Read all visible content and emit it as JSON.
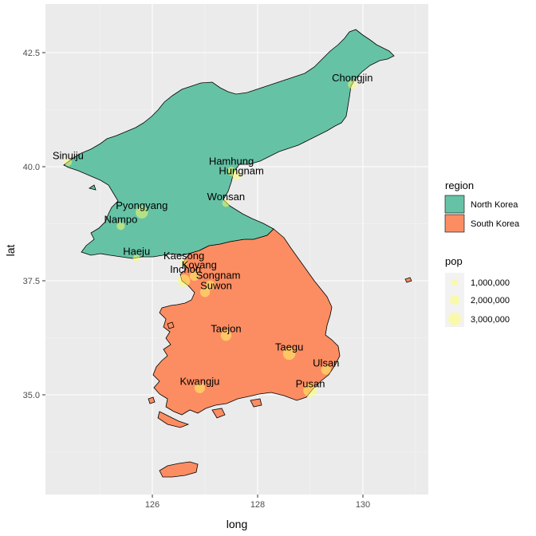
{
  "chart_data": {
    "type": "map",
    "xlabel": "long",
    "ylabel": "lat",
    "x_ticks": [
      "126",
      "128",
      "130"
    ],
    "y_ticks": [
      "35.0",
      "37.5",
      "40.0",
      "42.5"
    ],
    "regions": [
      {
        "name": "North Korea",
        "color": "#66c2a5"
      },
      {
        "name": "South Korea",
        "color": "#fc8d62"
      }
    ],
    "fill_legend": {
      "title": "region",
      "entries": [
        "North Korea",
        "South Korea"
      ]
    },
    "size_legend": {
      "title": "pop",
      "entries": [
        "1,000,000",
        "2,000,000",
        "3,000,000"
      ]
    },
    "cities": [
      {
        "name": "Chongjin",
        "long": 129.8,
        "lat": 41.8,
        "pop": 700000
      },
      {
        "name": "Sinuiju",
        "long": 124.4,
        "lat": 40.1,
        "pop": 350000
      },
      {
        "name": "Hamhung",
        "long": 127.5,
        "lat": 39.9,
        "pop": 700000
      },
      {
        "name": "Hungnam",
        "long": 127.6,
        "lat": 39.8,
        "pop": 600000
      },
      {
        "name": "Wonsan",
        "long": 127.4,
        "lat": 39.2,
        "pop": 350000
      },
      {
        "name": "Pyongyang",
        "long": 125.8,
        "lat": 39.0,
        "pop": 2500000
      },
      {
        "name": "Nampo",
        "long": 125.4,
        "lat": 38.7,
        "pop": 450000
      },
      {
        "name": "Haeju",
        "long": 125.7,
        "lat": 38.0,
        "pop": 250000
      },
      {
        "name": "Kaesong",
        "long": 126.6,
        "lat": 37.9,
        "pop": 300000
      },
      {
        "name": "Koyang",
        "long": 126.8,
        "lat": 37.6,
        "pop": 900000
      },
      {
        "name": "Inchon",
        "long": 126.6,
        "lat": 37.5,
        "pop": 2600000
      },
      {
        "name": "Songnam",
        "long": 127.1,
        "lat": 37.4,
        "pop": 1000000
      },
      {
        "name": "Suwon",
        "long": 127.0,
        "lat": 37.25,
        "pop": 1100000
      },
      {
        "name": "Taejon",
        "long": 127.4,
        "lat": 36.3,
        "pop": 1500000
      },
      {
        "name": "Taegu",
        "long": 128.6,
        "lat": 35.9,
        "pop": 2500000
      },
      {
        "name": "Ulsan",
        "long": 129.3,
        "lat": 35.55,
        "pop": 1100000
      },
      {
        "name": "Kwangju",
        "long": 126.9,
        "lat": 35.15,
        "pop": 1400000
      },
      {
        "name": "Pusan",
        "long": 129.0,
        "lat": 35.1,
        "pop": 3600000
      }
    ]
  }
}
